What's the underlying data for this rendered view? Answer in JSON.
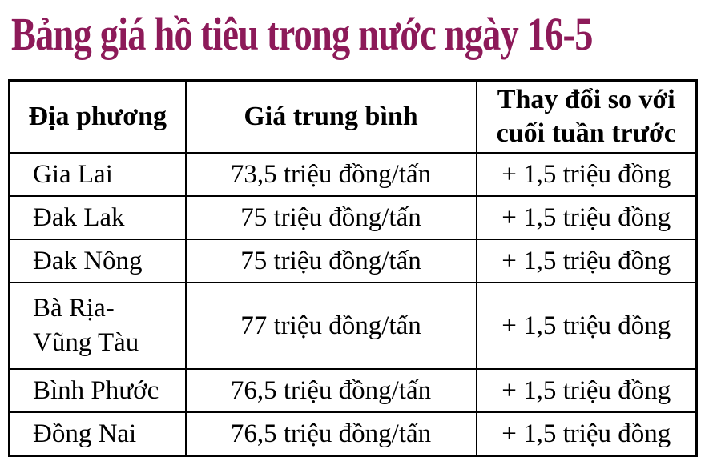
{
  "title": "Bảng giá hồ tiêu trong nước ngày 16-5",
  "colors": {
    "title_text": "#8d1a59",
    "table_border": "#000000",
    "body_text": "#000000",
    "background": "#ffffff"
  },
  "table": {
    "columns": [
      "Địa phương",
      "Giá trung bình",
      "Thay đổi so với\ncuối tuần trước"
    ],
    "rows": [
      {
        "location": "Gia Lai",
        "avg_price": "73,5 triệu đồng/tấn",
        "change": "+ 1,5 triệu đồng"
      },
      {
        "location": "Đak Lak",
        "avg_price": "75 triệu đồng/tấn",
        "change": "+ 1,5 triệu đồng"
      },
      {
        "location": "Đak Nông",
        "avg_price": "75 triệu đồng/tấn",
        "change": "+ 1,5 triệu đồng"
      },
      {
        "location": "Bà Rịa-\nVũng Tàu",
        "avg_price": "77 triệu đồng/tấn",
        "change": "+ 1,5 triệu đồng"
      },
      {
        "location": "Bình Phước",
        "avg_price": "76,5 triệu đồng/tấn",
        "change": "+ 1,5 triệu đồng"
      },
      {
        "location": "Đồng Nai",
        "avg_price": "76,5 triệu đồng/tấn",
        "change": "+ 1,5 triệu đồng"
      }
    ]
  },
  "chart_data": {
    "type": "table",
    "title": "Bảng giá hồ tiêu trong nước ngày 16-5",
    "columns": [
      "Địa phương",
      "Giá trung bình",
      "Thay đổi so với cuối tuần trước"
    ],
    "rows": [
      [
        "Gia Lai",
        "73,5 triệu đồng/tấn",
        "+ 1,5 triệu đồng"
      ],
      [
        "Đak Lak",
        "75 triệu đồng/tấn",
        "+ 1,5 triệu đồng"
      ],
      [
        "Đak Nông",
        "75 triệu đồng/tấn",
        "+ 1,5 triệu đồng"
      ],
      [
        "Bà Rịa-Vũng Tàu",
        "77 triệu đồng/tấn",
        "+ 1,5 triệu đồng"
      ],
      [
        "Bình Phước",
        "76,5 triệu đồng/tấn",
        "+ 1,5 triệu đồng"
      ],
      [
        "Đồng Nai",
        "76,5 triệu đồng/tấn",
        "+ 1,5 triệu đồng"
      ]
    ],
    "numeric": {
      "locations": [
        "Gia Lai",
        "Đak Lak",
        "Đak Nông",
        "Bà Rịa-Vũng Tàu",
        "Bình Phước",
        "Đồng Nai"
      ],
      "avg_price_trieu_dong_per_tan": [
        73.5,
        75,
        75,
        77,
        76.5,
        76.5
      ],
      "change_trieu_dong": [
        1.5,
        1.5,
        1.5,
        1.5,
        1.5,
        1.5
      ],
      "price_unit": "triệu đồng/tấn",
      "change_unit": "triệu đồng"
    }
  }
}
